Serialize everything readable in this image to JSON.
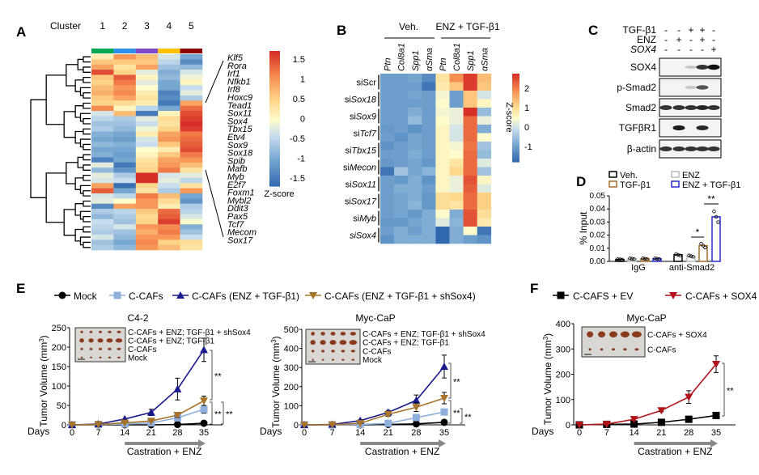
{
  "panels": {
    "A": "A",
    "B": "B",
    "C": "C",
    "D": "D",
    "E": "E",
    "F": "F"
  },
  "panelA": {
    "cluster_label": "Cluster",
    "clusters": [
      {
        "label": "1",
        "color": "#00a651"
      },
      {
        "label": "2",
        "color": "#2e8fe8"
      },
      {
        "label": "3",
        "color": "#7e48c8"
      },
      {
        "label": "4",
        "color": "#ffc000"
      },
      {
        "label": "5",
        "color": "#8b0000"
      }
    ],
    "genes": [
      "Klf5",
      "Rora",
      "Irf1",
      "Nfkb1",
      "Irf8",
      "Hoxc9",
      "Tead1",
      "Sox11",
      "Sox4",
      "Tbx15",
      "Etv4",
      "Sox9",
      "Sox18",
      "Spib",
      "Mafb",
      "Myb",
      "E2f7",
      "Foxm1",
      "Mybl2",
      "Ddit3",
      "Pax5",
      "Tcf7",
      "Mecom",
      "Sox17"
    ],
    "colorbar": {
      "title": "Z-score",
      "ticks": [
        "1.5",
        "1",
        "0.5",
        "0",
        "-0.5",
        "-1",
        "-1.5"
      ],
      "range": [
        -1.7,
        1.7
      ]
    },
    "heatmap": [
      [
        0.2,
        1.0,
        0.7,
        -0.3,
        -1.0
      ],
      [
        0.6,
        0.6,
        0.6,
        -0.5,
        -1.3
      ],
      [
        0.9,
        0.3,
        0.9,
        -0.7,
        -0.8
      ],
      [
        1.5,
        0.5,
        -0.2,
        -0.9,
        -0.3
      ],
      [
        0.6,
        1.4,
        0.1,
        -0.8,
        -0.1
      ],
      [
        0.5,
        1.2,
        -0.2,
        -1.0,
        0.1
      ],
      [
        0.7,
        1.0,
        0.0,
        -1.0,
        -0.4
      ],
      [
        0.8,
        1.1,
        0.2,
        -1.4,
        -0.2
      ],
      [
        0.6,
        0.9,
        0.3,
        -1.3,
        -0.6
      ],
      [
        0.5,
        0.4,
        0.2,
        -1.5,
        0.9
      ],
      [
        1.1,
        0.1,
        -0.5,
        -1.0,
        1.3
      ],
      [
        -0.3,
        0.7,
        -1.5,
        0.1,
        1.5
      ],
      [
        -0.5,
        -0.6,
        -0.2,
        0.4,
        1.6
      ],
      [
        -0.7,
        -0.7,
        -0.4,
        0.3,
        1.7
      ],
      [
        -0.6,
        -0.8,
        -0.1,
        0.5,
        1.6
      ],
      [
        -0.9,
        -1.0,
        0.2,
        0.9,
        1.2
      ],
      [
        -1.0,
        -1.1,
        -0.3,
        1.0,
        1.3
      ],
      [
        -0.8,
        -0.9,
        -0.4,
        0.6,
        1.4
      ],
      [
        -1.0,
        -1.0,
        0.0,
        0.2,
        1.5
      ],
      [
        -0.9,
        -1.1,
        0.1,
        0.6,
        1.2
      ],
      [
        -1.4,
        -1.0,
        0.3,
        0.9,
        1.0
      ],
      [
        -0.2,
        -1.5,
        0.4,
        1.0,
        0.7
      ],
      [
        -0.8,
        -1.2,
        0.5,
        1.2,
        0.3
      ],
      [
        -0.2,
        -0.6,
        1.7,
        -0.3,
        -0.2
      ],
      [
        -0.3,
        -0.4,
        1.8,
        -0.2,
        -0.5
      ],
      [
        0.9,
        -1.6,
        0.5,
        -0.4,
        0.3
      ],
      [
        1.4,
        -1.0,
        0.3,
        -0.6,
        1.0
      ],
      [
        -0.3,
        -0.5,
        1.2,
        0.7,
        -1.0
      ],
      [
        -0.2,
        0.0,
        1.0,
        0.4,
        -1.2
      ],
      [
        -1.3,
        0.9,
        1.0,
        0.2,
        -0.6
      ],
      [
        -0.6,
        -0.5,
        0.6,
        1.3,
        -0.5
      ],
      [
        -0.8,
        -0.6,
        0.4,
        1.4,
        -0.3
      ],
      [
        -0.4,
        -0.7,
        0.5,
        1.6,
        0.0
      ],
      [
        -0.5,
        -0.3,
        1.0,
        1.1,
        -0.9
      ],
      [
        -0.6,
        -0.7,
        0.8,
        1.2,
        -0.7
      ],
      [
        -0.3,
        -0.8,
        1.0,
        1.0,
        -0.4
      ],
      [
        -0.7,
        -1.0,
        1.1,
        0.5,
        0.4
      ],
      [
        -0.6,
        -0.8,
        1.0,
        0.7,
        0.3
      ]
    ]
  },
  "panelB": {
    "groups": [
      "Veh.",
      "ENZ + TGF-β1"
    ],
    "columns": [
      "Ptn",
      "Col8a1",
      "Spp1",
      "αSma",
      "Ptn",
      "Col8a1",
      "Spp1",
      "αSma"
    ],
    "rows": [
      "siScr",
      "siSox18",
      "siSox9",
      "siTcf7",
      "siTbx15",
      "siMecon",
      "siSox11",
      "siSox17",
      "siMyb",
      "siSox4"
    ],
    "colorbar": {
      "title": "Z-score",
      "ticks": [
        "2",
        "1",
        "0",
        "-1"
      ],
      "range": [
        -1.8,
        2.6
      ]
    },
    "heatmap": [
      [
        -1,
        -1,
        -0.9,
        -1.3,
        0.8,
        1.8,
        2.5,
        1.3
      ],
      [
        -1,
        -1,
        -1,
        -1.6,
        0.7,
        1.2,
        2.5,
        1.2
      ],
      [
        -1,
        -1,
        -0.9,
        -1,
        0.3,
        -1,
        1.2,
        0.0
      ],
      [
        -1,
        -1,
        -1,
        -1,
        0.4,
        -1,
        1.2,
        0.5
      ],
      [
        -1,
        -1,
        -0.8,
        -1,
        0.3,
        0.2,
        2.6,
        -0.6
      ],
      [
        -1,
        -1,
        -0.6,
        -1,
        0.4,
        0.2,
        2.1,
        0.2
      ],
      [
        -1.1,
        -1,
        -1.2,
        -1,
        0.5,
        0.0,
        2.1,
        -0.8
      ],
      [
        -1,
        -1.2,
        -0.9,
        -1,
        0.5,
        0.0,
        2.1,
        0.4
      ],
      [
        -1.2,
        -1,
        -0.9,
        -1,
        0.5,
        0.3,
        2.0,
        -0.5
      ],
      [
        -1,
        -1,
        -0.8,
        -1,
        0.5,
        0.4,
        2.1,
        -0.6
      ],
      [
        -1.1,
        -1,
        -0.9,
        -1.1,
        0.5,
        0.8,
        2.1,
        0.1
      ],
      [
        -1.6,
        -0.5,
        -0.9,
        -0.7,
        0.5,
        1.0,
        2.1,
        -0.5
      ],
      [
        -1,
        -1.1,
        -0.8,
        -1.2,
        0.5,
        0.2,
        2.3,
        0.5
      ],
      [
        -1,
        -0.8,
        -0.8,
        -1,
        0.5,
        0.2,
        2.2,
        0.1
      ],
      [
        -1,
        -0.9,
        -0.8,
        -1.1,
        0.9,
        1.0,
        2.1,
        1.1
      ],
      [
        -1,
        -0.9,
        -0.7,
        -1.1,
        0.9,
        0.8,
        2.1,
        1.1
      ],
      [
        -1,
        -0.9,
        -1.1,
        -0.8,
        0.4,
        -0.8,
        2.3,
        0.9
      ],
      [
        -1.1,
        -1.1,
        -0.9,
        -0.8,
        0.1,
        -0.7,
        2.3,
        0.7
      ],
      [
        -1,
        -0.8,
        -1,
        -0.8,
        -1.8,
        -0.8,
        0.4,
        -1.6
      ],
      [
        -1.2,
        -0.8,
        -0.8,
        -0.8,
        -1.8,
        -0.8,
        -1.0,
        -1.2
      ]
    ]
  },
  "panelC": {
    "conditions": [
      {
        "label": "TGF-β1",
        "signs": [
          "-",
          "-",
          "+",
          "+",
          "-"
        ]
      },
      {
        "label": "ENZ",
        "signs": [
          "-",
          "+",
          "-",
          "+",
          "-"
        ]
      },
      {
        "label": "SOX4",
        "signs": [
          "-",
          "-",
          "-",
          "-",
          "+"
        ]
      }
    ],
    "blots": [
      {
        "label": "SOX4",
        "intensity": [
          0,
          0,
          0.2,
          0.85,
          1
        ]
      },
      {
        "label": "p-Smad2",
        "intensity": [
          0,
          0,
          0.2,
          0.7,
          0
        ]
      },
      {
        "label": "Smad2",
        "intensity": [
          0.85,
          0.85,
          0.85,
          0.9,
          0.85
        ]
      },
      {
        "label": "TGFβR1",
        "intensity": [
          0,
          0.95,
          0,
          0.9,
          0
        ]
      },
      {
        "label": "β-actin",
        "intensity": [
          0.85,
          0.85,
          0.85,
          0.85,
          0.85
        ]
      }
    ]
  },
  "chart_data": [
    {
      "panel": "D",
      "type": "bar",
      "ylabel": "% Input",
      "ylim": [
        0,
        0.05
      ],
      "yticks": [
        "0.00",
        "0.01",
        "0.02",
        "0.03",
        "0.04",
        "0.05"
      ],
      "categories": [
        "IgG",
        "anti-Smad2"
      ],
      "legend_placement": "top",
      "series": [
        {
          "name": "Veh.",
          "color": "#000000",
          "values": [
            0.0015,
            0.005
          ]
        },
        {
          "name": "ENZ",
          "color": "#bbbbbb",
          "values": [
            0.002,
            0.004
          ]
        },
        {
          "name": "TGF-β1",
          "color": "#a8692a",
          "values": [
            0.002,
            0.012
          ]
        },
        {
          "name": "ENZ + TGF-β1",
          "color": "#2b2bd0",
          "values": [
            0.002,
            0.034
          ]
        }
      ],
      "legend_order": [
        "Veh.",
        "TGF-β1",
        "ENZ",
        "ENZ + TGF-β1"
      ],
      "annotations": [
        "*",
        "**"
      ]
    },
    {
      "panel": "E",
      "type": "line",
      "title": "C4-2",
      "xlabel": "Days",
      "ylabel": "Tumor Volume (mm3)",
      "x": [
        0,
        7,
        14,
        21,
        28,
        35
      ],
      "ylim": [
        0,
        250
      ],
      "yticks": [
        "0",
        "50",
        "100",
        "150",
        "200",
        "250"
      ],
      "treatment": "Castration + ENZ",
      "inset_labels": [
        "C-CAFs + ENZ; TGF-β1 + shSox4",
        "C-CAFs + ENZ; TGF-β1",
        "C-CAFs",
        "Mock"
      ],
      "annotations": [
        "**",
        "**",
        "**"
      ],
      "series": [
        {
          "name": "Mock",
          "color": "#000000",
          "marker": "circle",
          "values": [
            0,
            0,
            0,
            0,
            1,
            4
          ],
          "errors": [
            0,
            0,
            0,
            0,
            1,
            2
          ]
        },
        {
          "name": "C-CAFs",
          "color": "#8fb0dc",
          "marker": "square",
          "values": [
            0,
            1,
            2,
            5,
            18,
            40
          ],
          "errors": [
            0,
            0,
            1,
            2,
            4,
            10
          ]
        },
        {
          "name": "C-CAFs (ENZ + TGF-β1)",
          "color": "#1a1a8c",
          "marker": "triangle-up",
          "values": [
            0,
            2,
            15,
            32,
            92,
            193
          ],
          "errors": [
            0,
            1,
            3,
            8,
            28,
            30
          ]
        },
        {
          "name": "C-CAFs (ENZ + TGF-β1 + shSox4)",
          "color": "#a8732a",
          "marker": "triangle-down",
          "values": [
            0,
            1,
            5,
            10,
            25,
            62
          ],
          "errors": [
            0,
            0,
            1,
            3,
            6,
            12
          ]
        }
      ]
    },
    {
      "panel": "E",
      "type": "line",
      "title": "Myc-CaP",
      "xlabel": "Days",
      "ylabel": "Tumor Volume (mm3)",
      "x": [
        0,
        7,
        14,
        21,
        28,
        35
      ],
      "ylim": [
        0,
        500
      ],
      "yticks": [
        "0",
        "100",
        "200",
        "300",
        "400",
        "500"
      ],
      "treatment": "Castration + ENZ",
      "inset_labels": [
        "C-CAFs + ENZ; TGF-β1 + shSox4",
        "C-CAFs + ENZ; TGF-β1",
        "C-CAFs",
        "Mock"
      ],
      "annotations": [
        "**",
        "**",
        "**"
      ],
      "series": [
        {
          "name": "Mock",
          "color": "#000000",
          "marker": "circle",
          "values": [
            0,
            0,
            0,
            2,
            5,
            13
          ],
          "errors": [
            0,
            0,
            0,
            1,
            2,
            3
          ]
        },
        {
          "name": "C-CAFs",
          "color": "#8fb0dc",
          "marker": "square",
          "values": [
            0,
            0,
            2,
            8,
            38,
            67
          ],
          "errors": [
            0,
            0,
            1,
            3,
            6,
            8
          ]
        },
        {
          "name": "C-CAFs (ENZ + TGF-β1)",
          "color": "#1a1a8c",
          "marker": "triangle-up",
          "values": [
            0,
            2,
            22,
            65,
            128,
            305
          ],
          "errors": [
            0,
            1,
            4,
            10,
            28,
            60
          ]
        },
        {
          "name": "C-CAFs (ENZ + TGF-β1 + shSox4)",
          "color": "#a8732a",
          "marker": "triangle-down",
          "values": [
            0,
            1,
            8,
            55,
            92,
            140
          ],
          "errors": [
            0,
            0,
            2,
            10,
            22,
            30
          ]
        }
      ]
    },
    {
      "panel": "F",
      "type": "line",
      "title": "Myc-CaP",
      "xlabel": "Days",
      "ylabel": "Tumor Volume (mm3)",
      "x": [
        0,
        7,
        14,
        21,
        28,
        35
      ],
      "ylim": [
        0,
        400
      ],
      "yticks": [
        "0",
        "100",
        "200",
        "300",
        "400"
      ],
      "treatment": "Castration + ENZ",
      "inset_labels": [
        "C-CAFs + SOX4",
        "C-CAFs"
      ],
      "annotations": [
        "**"
      ],
      "series": [
        {
          "name": "C-CAFS + EV",
          "color": "#000000",
          "marker": "square",
          "values": [
            0,
            2,
            3,
            10,
            22,
            37
          ],
          "errors": [
            0,
            0,
            1,
            2,
            4,
            5
          ]
        },
        {
          "name": "C-CAFs  + SOX4",
          "color": "#b0141a",
          "marker": "triangle-down",
          "values": [
            0,
            3,
            22,
            57,
            110,
            240
          ],
          "errors": [
            0,
            1,
            3,
            5,
            25,
            33
          ]
        }
      ]
    }
  ]
}
